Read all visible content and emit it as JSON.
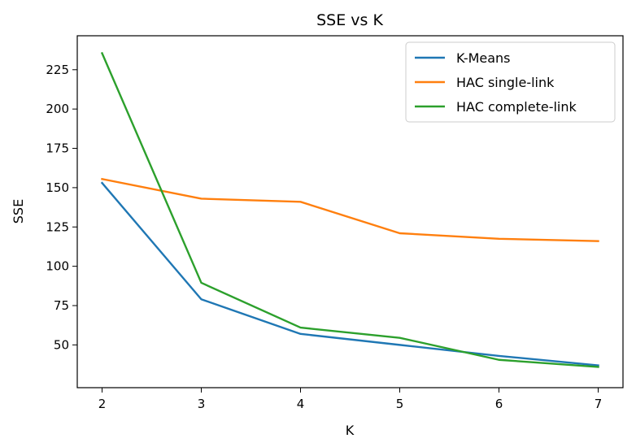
{
  "chart_data": {
    "type": "line",
    "title": "SSE vs K",
    "xlabel": "K",
    "ylabel": "SSE",
    "x": [
      2,
      3,
      4,
      5,
      6,
      7
    ],
    "xlim": [
      1.75,
      7.25
    ],
    "ylim": [
      22.8,
      246.6
    ],
    "xticks": [
      2,
      3,
      4,
      5,
      6,
      7
    ],
    "yticks": [
      50,
      75,
      100,
      125,
      150,
      175,
      200,
      225
    ],
    "grid": false,
    "legend": "top-right",
    "series": [
      {
        "name": "K-Means",
        "color": "#1f77b4",
        "values": [
          153,
          79,
          57,
          50,
          43,
          37
        ]
      },
      {
        "name": "HAC single-link",
        "color": "#ff7f0e",
        "values": [
          155.5,
          143,
          141,
          121,
          117.5,
          116
        ]
      },
      {
        "name": "HAC complete-link",
        "color": "#2ca02c",
        "values": [
          235.5,
          89.5,
          61,
          54.5,
          40.5,
          36
        ]
      }
    ]
  }
}
